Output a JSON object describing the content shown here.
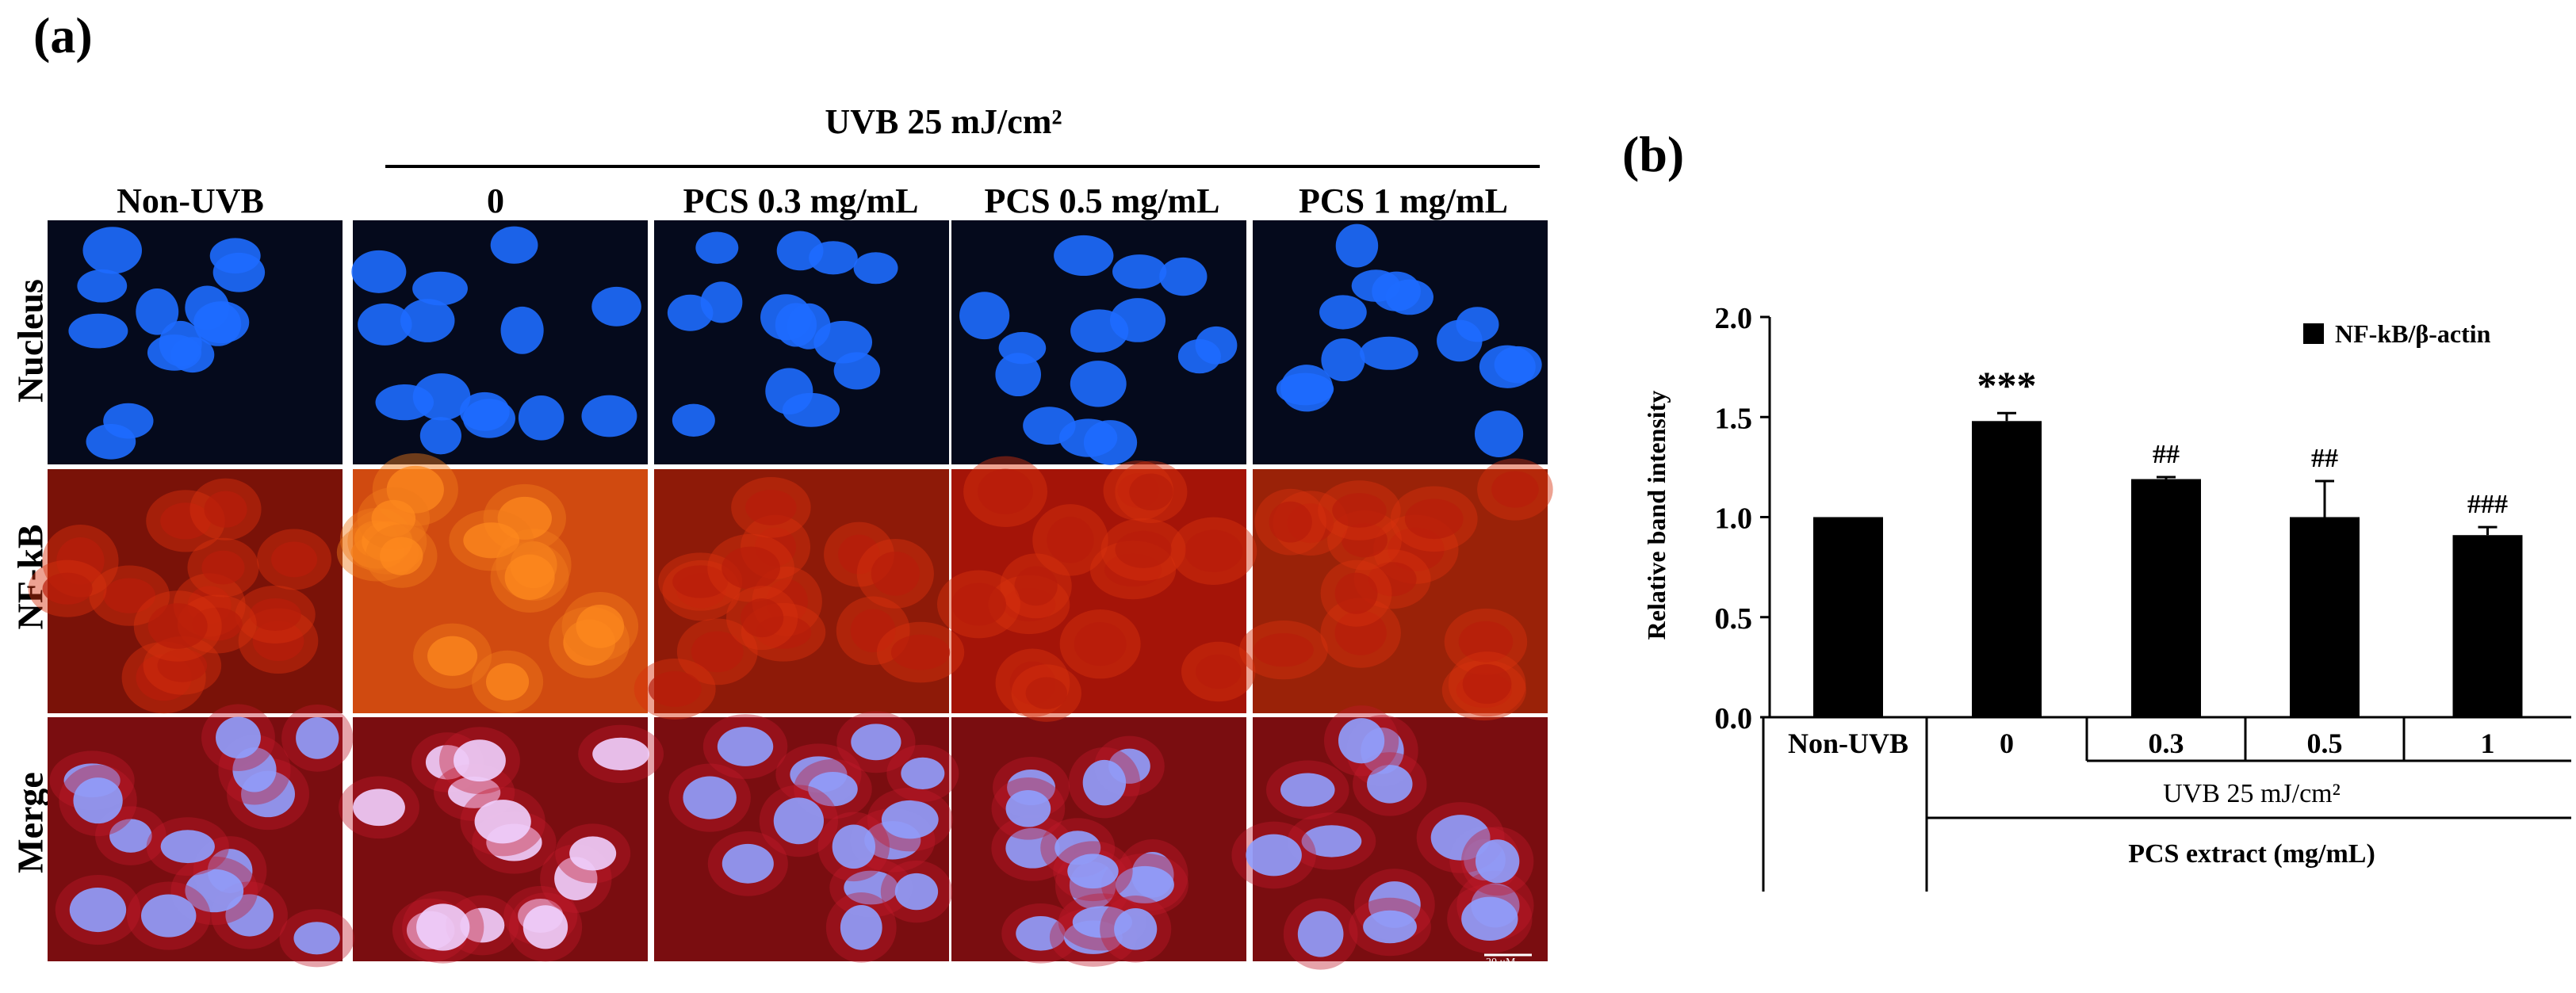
{
  "panel_a": {
    "label": "(a)",
    "uvb_header": "UVB 25 mJ/cm²",
    "columns": [
      "Non-UVB",
      "0",
      "PCS 0.3 mg/mL",
      "PCS 0.5 mg/mL",
      "PCS 1 mg/mL"
    ],
    "rows": [
      "Nucleus",
      "NF-kB",
      "Merge"
    ],
    "scale_bar": "20 μM",
    "colors": {
      "nucleus": "#1e6cff",
      "nfkb": "#d8300e",
      "merge_nucleus": "#8fa0ff"
    }
  },
  "panel_b": {
    "label": "(b)"
  },
  "chart_data": {
    "type": "bar",
    "categories": [
      "Non-UVB",
      "0",
      "0.3",
      "0.5",
      "1"
    ],
    "series": [
      {
        "name": "NF-kB/β-actin",
        "values": [
          1.0,
          1.48,
          1.19,
          1.0,
          0.91
        ],
        "errors": [
          0.0,
          0.04,
          0.01,
          0.18,
          0.04
        ],
        "significance": [
          "",
          "***",
          "##",
          "##",
          "###"
        ],
        "color": "#000000"
      }
    ],
    "ylabel": "Relative band intensity",
    "ylim": [
      0,
      2.0
    ],
    "yticks": [
      "0.0",
      "0.5",
      "1.0",
      "1.5",
      "2.0"
    ],
    "group_label_1": "UVB 25  mJ/cm²",
    "group_label_2": "PCS extract (mg/mL)",
    "legend_position": "top-right",
    "grid": false
  }
}
